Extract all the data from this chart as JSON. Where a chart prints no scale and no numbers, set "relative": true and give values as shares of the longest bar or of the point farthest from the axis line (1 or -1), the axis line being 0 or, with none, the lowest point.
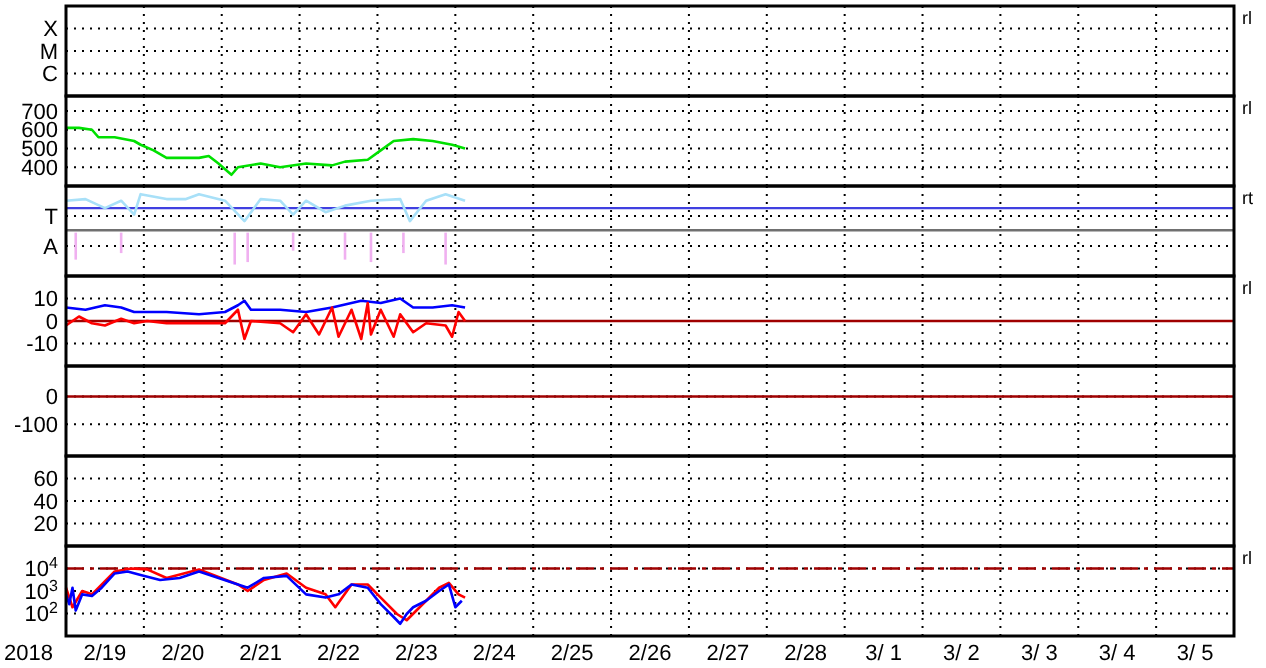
{
  "chart_data": [
    {
      "type": "other",
      "y_categories": [
        "X",
        "M",
        "C"
      ],
      "annotations": [
        "rl"
      ]
    },
    {
      "type": "line",
      "xlim": [
        "2018-02-19T00:00",
        "2018-03-06T00:00"
      ],
      "ylim": [
        300,
        780
      ],
      "yticks": [
        400,
        500,
        600,
        700
      ],
      "tick_labels": "y",
      "grid": true,
      "annotations": [
        "rl"
      ],
      "series": [
        {
          "color": "#00e000",
          "x": [
            "2018-02-19T00:00",
            "2018-02-19T04:00",
            "2018-02-19T08:00",
            "2018-02-19T10:00",
            "2018-02-19T15:00",
            "2018-02-19T21:00",
            "2018-02-19T23:00",
            "2018-02-20T03:00",
            "2018-02-20T07:00",
            "2018-02-20T11:00",
            "2018-02-20T17:00",
            "2018-02-20T20:00",
            "2018-02-20T23:00",
            "2018-02-21T03:00",
            "2018-02-21T05:00",
            "2018-02-21T12:00",
            "2018-02-21T18:00",
            "2018-02-22T02:00",
            "2018-02-22T10:00",
            "2018-02-22T14:00",
            "2018-02-22T21:00",
            "2018-02-23T01:00",
            "2018-02-23T05:00",
            "2018-02-23T11:00",
            "2018-02-23T17:00",
            "2018-02-23T23:00",
            "2018-02-24T03:00"
          ],
          "values": [
            610,
            610,
            600,
            560,
            560,
            540,
            520,
            490,
            450,
            450,
            450,
            460,
            420,
            360,
            400,
            420,
            400,
            420,
            410,
            430,
            440,
            490,
            540,
            550,
            540,
            520,
            500
          ]
        }
      ],
      "xticks": [
        {
          "value": "2018-02-20T00:00",
          "label": null
        },
        {
          "value": "2018-02-21T00:00",
          "label": null
        },
        {
          "value": "2018-02-22T00:00",
          "label": null
        },
        {
          "value": "2018-02-23T00:00",
          "label": null
        },
        {
          "value": "2018-02-24T00:00",
          "label": null
        },
        {
          "value": "2018-02-25T00:00",
          "label": null
        },
        {
          "value": "2018-02-26T00:00",
          "label": null
        },
        {
          "value": "2018-02-27T00:00",
          "label": null
        },
        {
          "value": "2018-02-28T00:00",
          "label": null
        },
        {
          "value": "2018-03-01T00:00",
          "label": null
        },
        {
          "value": "2018-03-02T00:00",
          "label": null
        },
        {
          "value": "2018-03-03T00:00",
          "label": null
        },
        {
          "value": "2018-03-04T00:00",
          "label": null
        },
        {
          "value": "2018-03-05T00:00",
          "label": null
        }
      ]
    },
    {
      "type": "line",
      "relative": true,
      "xlim": [
        "2018-02-19T00:00",
        "2018-03-06T00:00"
      ],
      "y_categories": [
        "T",
        "A"
      ],
      "tick_labels": "y",
      "grid": true,
      "annotations": [
        "rt"
      ],
      "ref_lines": [
        {
          "axis": "y",
          "value": 0.83,
          "label": null,
          "color": "#4040e0"
        },
        {
          "axis": "y",
          "value": 0.56,
          "label": null,
          "color": "#707070"
        }
      ],
      "series": [
        {
          "color": "#a8e0f8",
          "x": [
            "2018-02-19T00:00",
            "2018-02-19T06:00",
            "2018-02-19T12:00",
            "2018-02-19T17:00",
            "2018-02-19T21:00",
            "2018-02-19T23:00",
            "2018-02-20T07:00",
            "2018-02-20T13:00",
            "2018-02-20T17:00",
            "2018-02-21T01:00",
            "2018-02-21T07:00",
            "2018-02-21T12:00",
            "2018-02-21T18:00",
            "2018-02-21T22:00",
            "2018-02-22T02:00",
            "2018-02-22T08:00",
            "2018-02-22T14:00",
            "2018-02-22T22:00",
            "2018-02-23T07:00",
            "2018-02-23T10:00",
            "2018-02-23T15:00",
            "2018-02-23T21:00",
            "2018-02-24T03:00"
          ],
          "values": [
            0.92,
            0.94,
            0.83,
            0.92,
            0.75,
            1,
            0.94,
            0.94,
            1,
            0.92,
            0.67,
            0.94,
            0.92,
            0.75,
            0.92,
            0.78,
            0.86,
            0.92,
            0.94,
            0.67,
            0.92,
            1,
            0.92
          ]
        },
        {
          "color": "#f0b0f0",
          "x": [
            "2018-02-19T03:00",
            "2018-02-19T03:00"
          ],
          "values": [
            0.53,
            0.2
          ]
        },
        {
          "color": "#f0b0f0",
          "x": [
            "2018-02-19T17:00",
            "2018-02-19T17:00"
          ],
          "values": [
            0.53,
            0.28
          ]
        },
        {
          "color": "#f0b0f0",
          "x": [
            "2018-02-21T04:00",
            "2018-02-21T04:00"
          ],
          "values": [
            0.53,
            0.14
          ]
        },
        {
          "color": "#f0b0f0",
          "x": [
            "2018-02-21T08:00",
            "2018-02-21T08:00"
          ],
          "values": [
            0.53,
            0.17
          ]
        },
        {
          "color": "#f0b0f0",
          "x": [
            "2018-02-21T22:00",
            "2018-02-21T22:00"
          ],
          "values": [
            0.53,
            0.31
          ]
        },
        {
          "color": "#f0b0f0",
          "x": [
            "2018-02-22T14:00",
            "2018-02-22T14:00"
          ],
          "values": [
            0.53,
            0.2
          ]
        },
        {
          "color": "#f0b0f0",
          "x": [
            "2018-02-22T22:00",
            "2018-02-22T22:00"
          ],
          "values": [
            0.53,
            0.17
          ]
        },
        {
          "color": "#f0b0f0",
          "x": [
            "2018-02-23T08:00",
            "2018-02-23T08:00"
          ],
          "values": [
            0.53,
            0.28
          ]
        },
        {
          "color": "#f0b0f0",
          "x": [
            "2018-02-23T21:00",
            "2018-02-23T21:00"
          ],
          "values": [
            0.53,
            0.14
          ]
        }
      ],
      "xticks": [
        {
          "value": "2018-02-20T00:00",
          "label": null
        },
        {
          "value": "2018-02-21T00:00",
          "label": null
        },
        {
          "value": "2018-02-22T00:00",
          "label": null
        },
        {
          "value": "2018-02-23T00:00",
          "label": null
        },
        {
          "value": "2018-02-24T00:00",
          "label": null
        },
        {
          "value": "2018-02-25T00:00",
          "label": null
        },
        {
          "value": "2018-02-26T00:00",
          "label": null
        },
        {
          "value": "2018-02-27T00:00",
          "label": null
        },
        {
          "value": "2018-02-28T00:00",
          "label": null
        },
        {
          "value": "2018-03-01T00:00",
          "label": null
        },
        {
          "value": "2018-03-02T00:00",
          "label": null
        },
        {
          "value": "2018-03-03T00:00",
          "label": null
        },
        {
          "value": "2018-03-04T00:00",
          "label": null
        },
        {
          "value": "2018-03-05T00:00",
          "label": null
        }
      ]
    },
    {
      "type": "line",
      "xlim": [
        "2018-02-19T00:00",
        "2018-03-06T00:00"
      ],
      "ylim": [
        -20,
        20
      ],
      "yticks": [
        -10,
        0,
        10
      ],
      "tick_labels": "y",
      "grid": true,
      "annotations": [
        "rl"
      ],
      "ref_lines": [
        {
          "axis": "y",
          "value": 0,
          "label": null,
          "color": "#a00000"
        }
      ],
      "series": [
        {
          "color": "#0000ff",
          "x": [
            "2018-02-19T00:00",
            "2018-02-19T06:00",
            "2018-02-19T12:00",
            "2018-02-19T17:00",
            "2018-02-19T21:00",
            "2018-02-20T07:00",
            "2018-02-20T17:00",
            "2018-02-21T01:00",
            "2018-02-21T05:00",
            "2018-02-21T07:00",
            "2018-02-21T09:00",
            "2018-02-21T18:00",
            "2018-02-22T02:00",
            "2018-02-22T10:00",
            "2018-02-22T19:00",
            "2018-02-23T01:00",
            "2018-02-23T07:00",
            "2018-02-23T11:00",
            "2018-02-23T17:00",
            "2018-02-23T23:00",
            "2018-02-24T03:00"
          ],
          "values": [
            6,
            5,
            7,
            6,
            4,
            4,
            3,
            4,
            7,
            9,
            5,
            5,
            4,
            6,
            9,
            8,
            10,
            6,
            6,
            7,
            6
          ]
        },
        {
          "color": "#ff0000",
          "x": [
            "2018-02-19T00:00",
            "2018-02-19T04:00",
            "2018-02-19T08:00",
            "2018-02-19T12:00",
            "2018-02-19T17:00",
            "2018-02-19T21:00",
            "2018-02-20T01:00",
            "2018-02-20T07:00",
            "2018-02-20T17:00",
            "2018-02-21T01:00",
            "2018-02-21T05:00",
            "2018-02-21T07:00",
            "2018-02-21T09:00",
            "2018-02-21T18:00",
            "2018-02-21T22:00",
            "2018-02-22T02:00",
            "2018-02-22T06:00",
            "2018-02-22T10:00",
            "2018-02-22T12:00",
            "2018-02-22T16:00",
            "2018-02-22T19:00",
            "2018-02-22T21:00",
            "2018-02-22T22:00",
            "2018-02-23T01:00",
            "2018-02-23T05:00",
            "2018-02-23T07:00",
            "2018-02-23T11:00",
            "2018-02-23T15:00",
            "2018-02-23T21:00",
            "2018-02-23T23:00",
            "2018-02-24T01:00",
            "2018-02-24T03:00"
          ],
          "values": [
            -2,
            2,
            -1,
            -2,
            1,
            -1,
            0,
            -1,
            -1,
            -1,
            5,
            -8,
            0,
            -1,
            -5,
            3,
            -6,
            6,
            -7,
            5,
            -8,
            8,
            -6,
            5,
            -7,
            3,
            -5,
            -1,
            -2,
            -7,
            4,
            0
          ]
        }
      ],
      "xticks": [
        {
          "value": "2018-02-20T00:00",
          "label": null
        },
        {
          "value": "2018-02-21T00:00",
          "label": null
        },
        {
          "value": "2018-02-22T00:00",
          "label": null
        },
        {
          "value": "2018-02-23T00:00",
          "label": null
        },
        {
          "value": "2018-02-24T00:00",
          "label": null
        },
        {
          "value": "2018-02-25T00:00",
          "label": null
        },
        {
          "value": "2018-02-26T00:00",
          "label": null
        },
        {
          "value": "2018-02-27T00:00",
          "label": null
        },
        {
          "value": "2018-02-28T00:00",
          "label": null
        },
        {
          "value": "2018-03-01T00:00",
          "label": null
        },
        {
          "value": "2018-03-02T00:00",
          "label": null
        },
        {
          "value": "2018-03-03T00:00",
          "label": null
        },
        {
          "value": "2018-03-04T00:00",
          "label": null
        },
        {
          "value": "2018-03-05T00:00",
          "label": null
        }
      ]
    },
    {
      "type": "line",
      "xlim": [
        "2018-02-19T00:00",
        "2018-03-06T00:00"
      ],
      "ylim": [
        -215,
        110
      ],
      "yticks": [
        -100,
        0
      ],
      "tick_labels": "y",
      "grid": true,
      "ref_lines": [
        {
          "axis": "y",
          "value": 0,
          "label": null,
          "color": "#a00000"
        }
      ],
      "xticks": [
        {
          "value": "2018-02-20T00:00",
          "label": null
        },
        {
          "value": "2018-02-21T00:00",
          "label": null
        },
        {
          "value": "2018-02-22T00:00",
          "label": null
        },
        {
          "value": "2018-02-23T00:00",
          "label": null
        },
        {
          "value": "2018-02-24T00:00",
          "label": null
        },
        {
          "value": "2018-02-25T00:00",
          "label": null
        },
        {
          "value": "2018-02-26T00:00",
          "label": null
        },
        {
          "value": "2018-02-27T00:00",
          "label": null
        },
        {
          "value": "2018-02-28T00:00",
          "label": null
        },
        {
          "value": "2018-03-01T00:00",
          "label": null
        },
        {
          "value": "2018-03-02T00:00",
          "label": null
        },
        {
          "value": "2018-03-03T00:00",
          "label": null
        },
        {
          "value": "2018-03-04T00:00",
          "label": null
        },
        {
          "value": "2018-03-05T00:00",
          "label": null
        }
      ]
    },
    {
      "type": "line",
      "xlim": [
        "2018-02-19T00:00",
        "2018-03-06T00:00"
      ],
      "ylim": [
        0,
        80
      ],
      "yticks": [
        20,
        40,
        60
      ],
      "tick_labels": "y",
      "grid": true,
      "xticks": [
        {
          "value": "2018-02-20T00:00",
          "label": null
        },
        {
          "value": "2018-02-21T00:00",
          "label": null
        },
        {
          "value": "2018-02-22T00:00",
          "label": null
        },
        {
          "value": "2018-02-23T00:00",
          "label": null
        },
        {
          "value": "2018-02-24T00:00",
          "label": null
        },
        {
          "value": "2018-02-25T00:00",
          "label": null
        },
        {
          "value": "2018-02-26T00:00",
          "label": null
        },
        {
          "value": "2018-02-27T00:00",
          "label": null
        },
        {
          "value": "2018-02-28T00:00",
          "label": null
        },
        {
          "value": "2018-03-01T00:00",
          "label": null
        },
        {
          "value": "2018-03-02T00:00",
          "label": null
        },
        {
          "value": "2018-03-03T00:00",
          "label": null
        },
        {
          "value": "2018-03-04T00:00",
          "label": null
        },
        {
          "value": "2018-03-05T00:00",
          "label": null
        }
      ]
    },
    {
      "type": "line",
      "xlabel": "2018",
      "xlim": [
        "2018-02-19T00:00",
        "2018-03-06T00:00"
      ],
      "log": true,
      "ylim": [
        10,
        100000
      ],
      "yticks": [
        {
          "value": 100,
          "label": "10$^{2}$"
        },
        {
          "value": 1000,
          "label": "10$^{3}$"
        },
        {
          "value": 10000,
          "label": "10$^{4}$"
        }
      ],
      "grid": true,
      "annotations": [
        "rl"
      ],
      "ref_lines": [
        {
          "axis": "y",
          "value": 10000,
          "label": null,
          "color": "#a00000",
          "line_style": "dashed"
        }
      ],
      "series": [
        {
          "color": "#ff0000",
          "x": [
            "2018-02-19T00:00",
            "2018-02-19T02:00",
            "2018-02-19T05:00",
            "2018-02-19T08:00",
            "2018-02-19T15:00",
            "2018-02-19T20:00",
            "2018-02-20T01:00",
            "2018-02-20T07:00",
            "2018-02-20T17:00",
            "2018-02-21T05:00",
            "2018-02-21T08:00",
            "2018-02-21T13:00",
            "2018-02-21T20:00",
            "2018-02-22T02:00",
            "2018-02-22T08:00",
            "2018-02-22T11:00",
            "2018-02-22T16:00",
            "2018-02-22T21:00",
            "2018-02-23T01:00",
            "2018-02-23T06:00",
            "2018-02-23T09:00",
            "2018-02-23T13:00",
            "2018-02-23T19:00",
            "2018-02-23T22:00",
            "2018-02-24T01:00",
            "2018-02-24T03:00"
          ],
          "values": [
            1400,
            190,
            1000,
            710,
            7400,
            10000,
            9100,
            3800,
            9100,
            1950,
            1000,
            3100,
            6000,
            1400,
            710,
            190,
            1950,
            1950,
            510,
            95,
            50,
            190,
            1400,
            2300,
            710,
            510
          ]
        },
        {
          "color": "#0000ff",
          "x": [
            "2018-02-19T00:00",
            "2018-02-19T01:00",
            "2018-02-19T02:00",
            "2018-02-19T03:00",
            "2018-02-19T05:00",
            "2018-02-19T08:00",
            "2018-02-19T11:00",
            "2018-02-19T15:00",
            "2018-02-19T19:00",
            "2018-02-19T23:00",
            "2018-02-20T05:00",
            "2018-02-20T11:00",
            "2018-02-20T17:00",
            "2018-02-20T23:00",
            "2018-02-21T05:00",
            "2018-02-21T08:00",
            "2018-02-21T13:00",
            "2018-02-21T20:00",
            "2018-02-22T02:00",
            "2018-02-22T08:00",
            "2018-02-22T12:00",
            "2018-02-22T16:00",
            "2018-02-22T21:00",
            "2018-02-23T01:00",
            "2018-02-23T05:00",
            "2018-02-23T07:00",
            "2018-02-23T09:00",
            "2018-02-23T11:00",
            "2018-02-23T15:00",
            "2018-02-23T19:00",
            "2018-02-23T22:00",
            "2018-02-24T00:00",
            "2018-02-24T02:00"
          ],
          "values": [
            710,
            260,
            1400,
            135,
            710,
            600,
            1400,
            6000,
            7400,
            5200,
            3100,
            3800,
            7400,
            3800,
            1950,
            1400,
            3800,
            4700,
            710,
            510,
            710,
            1950,
            1400,
            260,
            70,
            35,
            95,
            190,
            370,
            1000,
            1950,
            190,
            370
          ]
        }
      ],
      "xticks": [
        {
          "value": "2018-02-19T12:00",
          "label": "2/19"
        },
        {
          "value": "2018-02-20T00:00",
          "label": null
        },
        {
          "value": "2018-02-20T12:00",
          "label": "2/20"
        },
        {
          "value": "2018-02-21T00:00",
          "label": null
        },
        {
          "value": "2018-02-21T12:00",
          "label": "2/21"
        },
        {
          "value": "2018-02-22T00:00",
          "label": null
        },
        {
          "value": "2018-02-22T12:00",
          "label": "2/22"
        },
        {
          "value": "2018-02-23T00:00",
          "label": null
        },
        {
          "value": "2018-02-23T12:00",
          "label": "2/23"
        },
        {
          "value": "2018-02-24T00:00",
          "label": null
        },
        {
          "value": "2018-02-24T12:00",
          "label": "2/24"
        },
        {
          "value": "2018-02-25T00:00",
          "label": null
        },
        {
          "value": "2018-02-25T12:00",
          "label": "2/25"
        },
        {
          "value": "2018-02-26T00:00",
          "label": null
        },
        {
          "value": "2018-02-26T12:00",
          "label": "2/26"
        },
        {
          "value": "2018-02-27T00:00",
          "label": null
        },
        {
          "value": "2018-02-27T12:00",
          "label": "2/27"
        },
        {
          "value": "2018-02-28T00:00",
          "label": null
        },
        {
          "value": "2018-02-28T12:00",
          "label": "2/28"
        },
        {
          "value": "2018-03-01T00:00",
          "label": null
        },
        {
          "value": "2018-03-01T12:00",
          "label": "3/ 1"
        },
        {
          "value": "2018-03-02T00:00",
          "label": null
        },
        {
          "value": "2018-03-02T12:00",
          "label": "3/ 2"
        },
        {
          "value": "2018-03-03T00:00",
          "label": null
        },
        {
          "value": "2018-03-03T12:00",
          "label": "3/ 3"
        },
        {
          "value": "2018-03-04T00:00",
          "label": null
        },
        {
          "value": "2018-03-04T12:00",
          "label": "3/ 4"
        },
        {
          "value": "2018-03-05T00:00",
          "label": null
        },
        {
          "value": "2018-03-05T12:00",
          "label": "3/ 5"
        }
      ]
    }
  ]
}
